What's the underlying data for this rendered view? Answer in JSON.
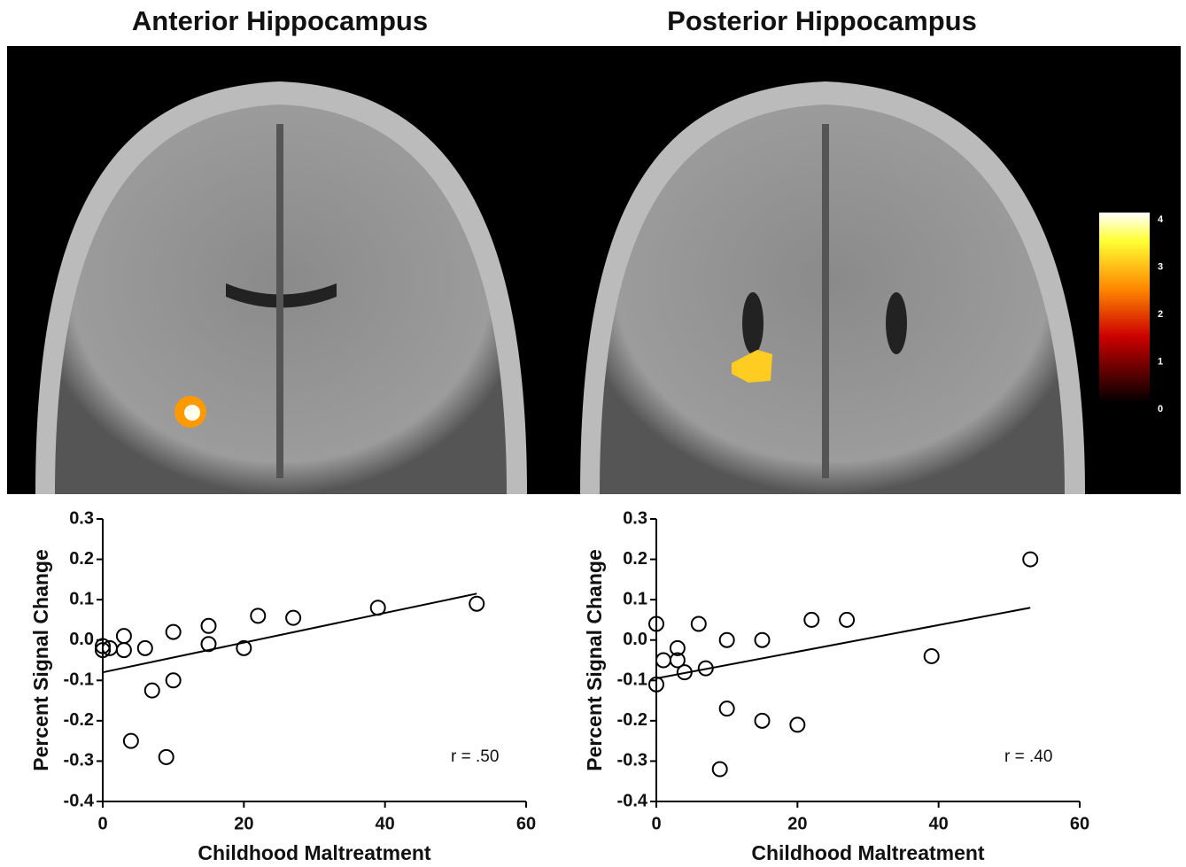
{
  "chart_data": [
    {
      "type": "scatter",
      "title": "Anterior Hippocampus",
      "xlabel": "Childhood Maltreatment",
      "ylabel": "Percent Signal Change",
      "annotation": "r = .50",
      "xlim": [
        0,
        60
      ],
      "xticks": [
        0,
        20,
        40,
        60
      ],
      "ylim": [
        -0.4,
        0.3
      ],
      "yticks": [
        0.3,
        0.2,
        0.1,
        {
          "value": 0,
          "label": "0.0"
        },
        -0.1,
        -0.2,
        -0.3,
        -0.4
      ],
      "x": [
        0,
        0,
        1,
        3,
        3,
        4,
        6,
        7,
        9,
        10,
        10,
        15,
        15,
        20,
        22,
        27,
        39,
        53
      ],
      "y": [
        -0.015,
        -0.025,
        -0.02,
        0.01,
        -0.025,
        -0.25,
        -0.02,
        -0.125,
        -0.29,
        0.02,
        -0.1,
        0.035,
        -0.01,
        -0.02,
        0.06,
        0.055,
        0.08,
        0.09
      ],
      "trendline": {
        "x": [
          0,
          53
        ],
        "y": [
          -0.08,
          0.115
        ]
      }
    },
    {
      "type": "scatter",
      "title": "Posterior Hippocampus",
      "xlabel": "Childhood Maltreatment",
      "ylabel": "Percent Signal Change",
      "annotation": "r = .40",
      "xlim": [
        0,
        60
      ],
      "xticks": [
        0,
        20,
        40,
        60
      ],
      "ylim": [
        -0.4,
        0.3
      ],
      "yticks": [
        0.3,
        0.2,
        0.1,
        {
          "value": 0,
          "label": "0.0"
        },
        -0.1,
        -0.2,
        -0.3,
        -0.4
      ],
      "x": [
        0,
        0,
        1,
        3,
        3,
        4,
        6,
        7,
        9,
        10,
        10,
        15,
        15,
        20,
        22,
        27,
        39,
        53
      ],
      "y": [
        0.04,
        -0.11,
        -0.05,
        -0.02,
        -0.05,
        -0.08,
        0.04,
        -0.07,
        -0.32,
        0.0,
        -0.17,
        0.0,
        -0.2,
        -0.21,
        0.05,
        0.05,
        -0.04,
        0.2
      ],
      "trendline": {
        "x": [
          0,
          53
        ],
        "y": [
          -0.095,
          0.08
        ]
      }
    }
  ],
  "colorbar": {
    "ticks": [
      0,
      1,
      2,
      3,
      4
    ]
  }
}
